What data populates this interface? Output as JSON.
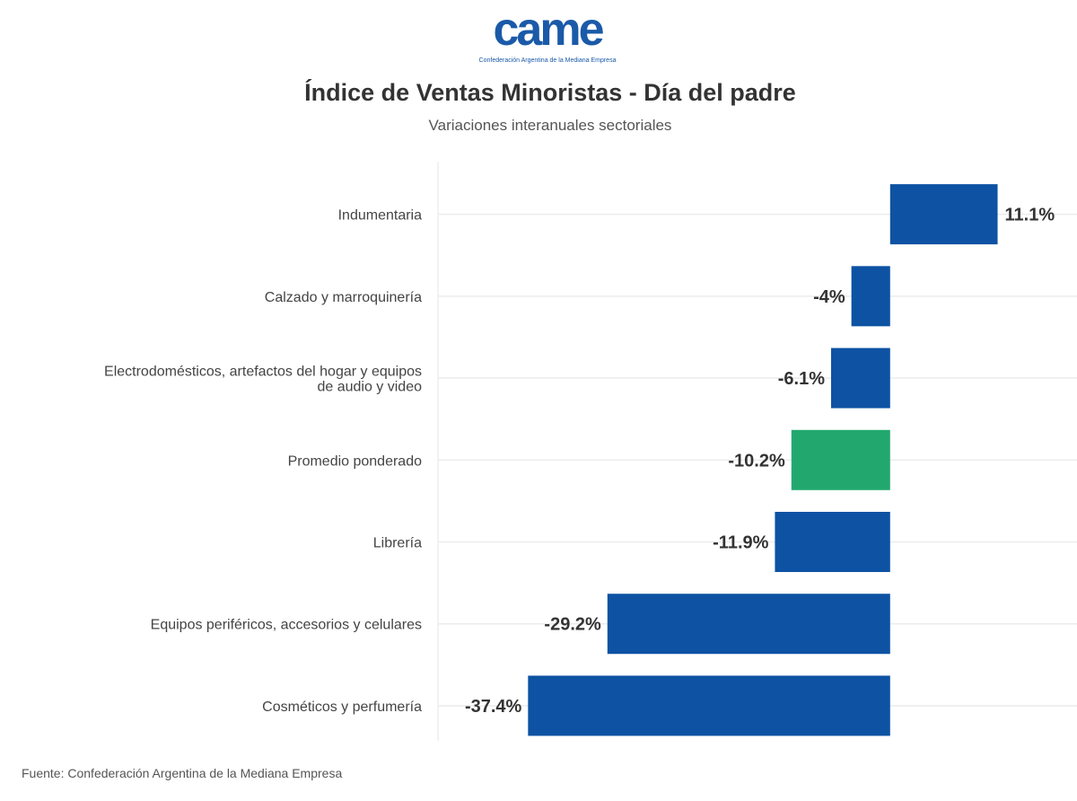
{
  "logo": {
    "text": "came",
    "subtitle": "Confederación Argentina de la Mediana Empresa"
  },
  "source": "Fuente: Confederación Argentina de la Mediana Empresa",
  "chart_data": {
    "type": "bar",
    "orientation": "horizontal",
    "title": "Índice de Ventas Minoristas - Día del padre",
    "subtitle": "Variaciones interanuales sectoriales",
    "categories": [
      "Indumentaria",
      "Calzado y marroquinería",
      "Electrodomésticos, artefactos del hogar y equipos de audio y video",
      "Promedio ponderado",
      "Librería",
      "Equipos periféricos, accesorios y celulares",
      "Cosméticos y perfumería"
    ],
    "category_lines": [
      [
        "Indumentaria"
      ],
      [
        "Calzado y marroquinería"
      ],
      [
        "Electrodomésticos, artefactos del hogar y equipos",
        "de audio y video"
      ],
      [
        "Promedio ponderado"
      ],
      [
        "Librería"
      ],
      [
        "Equipos periféricos, accesorios y celulares"
      ],
      [
        "Cosméticos y perfumería"
      ]
    ],
    "values": [
      11.1,
      -4,
      -6.1,
      -10.2,
      -11.9,
      -29.2,
      -37.4
    ],
    "labels": [
      "11.1%",
      "-4%",
      "-6.1%",
      "-10.2%",
      "-11.9%",
      "-29.2%",
      "-37.4%"
    ],
    "colors": [
      "#0d52a3",
      "#0d52a3",
      "#0d52a3",
      "#22a86f",
      "#0d52a3",
      "#0d52a3",
      "#0d52a3"
    ],
    "xlim": [
      -46.7,
      19.3
    ],
    "grid": true,
    "xlabel": "",
    "ylabel": ""
  }
}
